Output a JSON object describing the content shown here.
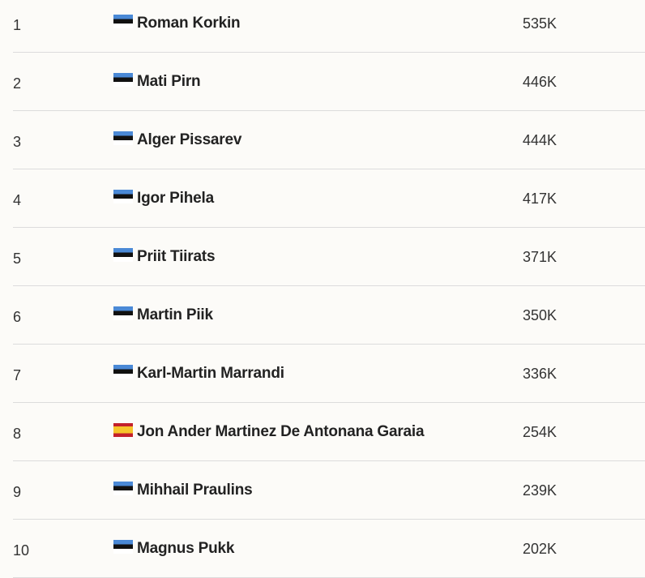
{
  "colors": {
    "estonia_flag": [
      "#4a89d6",
      "#111111",
      "#ffffff"
    ],
    "spain_flag": [
      "#c3202b",
      "#f6c42a"
    ]
  },
  "rows": [
    {
      "rank": "1",
      "flag": "estonia-flag",
      "name": "Roman Korkin",
      "value": "535K"
    },
    {
      "rank": "2",
      "flag": "estonia-flag",
      "name": "Mati Pirn",
      "value": "446K"
    },
    {
      "rank": "3",
      "flag": "estonia-flag",
      "name": "Alger Pissarev",
      "value": "444K"
    },
    {
      "rank": "4",
      "flag": "estonia-flag",
      "name": "Igor Pihela",
      "value": "417K"
    },
    {
      "rank": "5",
      "flag": "estonia-flag",
      "name": "Priit Tiirats",
      "value": "371K"
    },
    {
      "rank": "6",
      "flag": "estonia-flag",
      "name": "Martin Piik",
      "value": "350K"
    },
    {
      "rank": "7",
      "flag": "estonia-flag",
      "name": "Karl-Martin Marrandi",
      "value": "336K"
    },
    {
      "rank": "8",
      "flag": "spain-flag",
      "name": "Jon Ander Martinez De Antonana Garaia",
      "value": "254K"
    },
    {
      "rank": "9",
      "flag": "estonia-flag",
      "name": "Mihhail Praulins",
      "value": "239K"
    },
    {
      "rank": "10",
      "flag": "estonia-flag",
      "name": "Magnus Pukk",
      "value": "202K"
    }
  ]
}
